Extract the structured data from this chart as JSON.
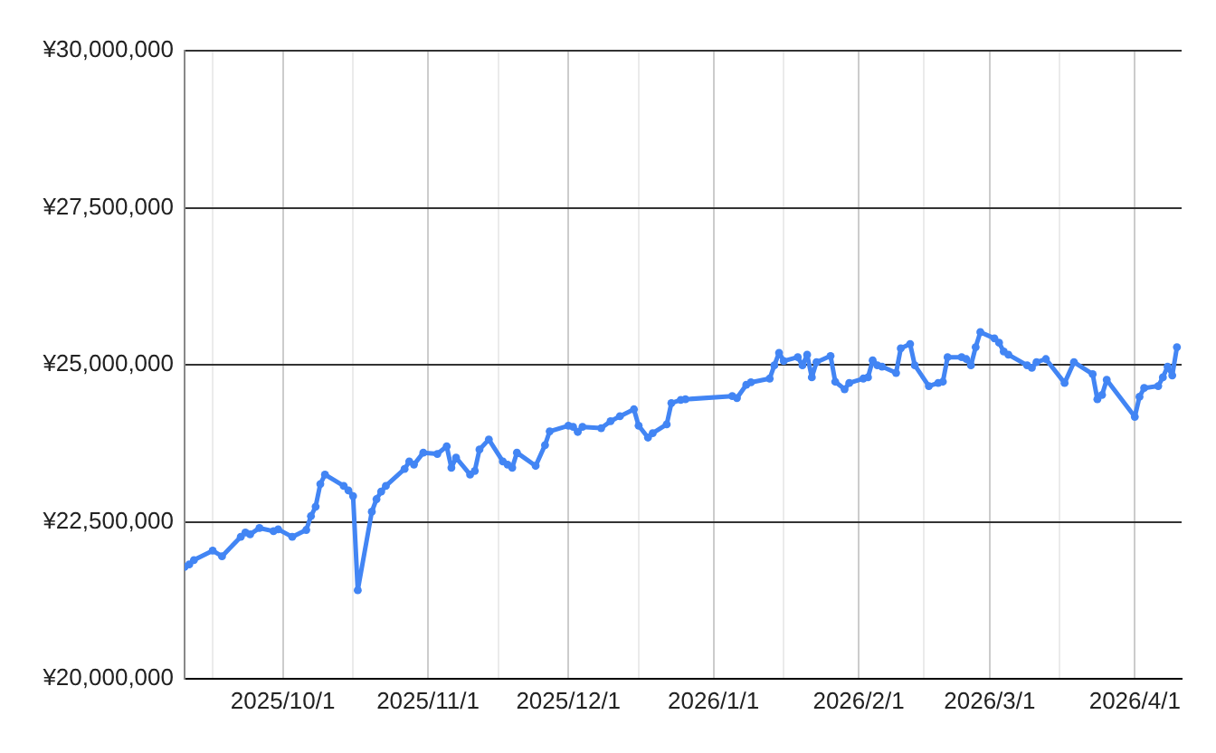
{
  "chart_data": {
    "type": "line",
    "x": [
      "2025-09-10",
      "2025-09-11",
      "2025-09-12",
      "2025-09-16",
      "2025-09-18",
      "2025-09-22",
      "2025-09-23",
      "2025-09-24",
      "2025-09-26",
      "2025-09-29",
      "2025-09-30",
      "2025-10-03",
      "2025-10-06",
      "2025-10-07",
      "2025-10-08",
      "2025-10-09",
      "2025-10-10",
      "2025-10-14",
      "2025-10-15",
      "2025-10-16",
      "2025-10-17",
      "2025-10-20",
      "2025-10-21",
      "2025-10-22",
      "2025-10-23",
      "2025-10-27",
      "2025-10-28",
      "2025-10-29",
      "2025-10-31",
      "2025-11-03",
      "2025-11-05",
      "2025-11-06",
      "2025-11-07",
      "2025-11-10",
      "2025-11-11",
      "2025-11-12",
      "2025-11-14",
      "2025-11-17",
      "2025-11-18",
      "2025-11-19",
      "2025-11-20",
      "2025-11-24",
      "2025-11-26",
      "2025-11-27",
      "2025-12-01",
      "2025-12-02",
      "2025-12-03",
      "2025-12-04",
      "2025-12-08",
      "2025-12-10",
      "2025-12-12",
      "2025-12-15",
      "2025-12-16",
      "2025-12-18",
      "2025-12-19",
      "2025-12-22",
      "2025-12-23",
      "2025-12-25",
      "2025-12-26",
      "2026-01-05",
      "2026-01-06",
      "2026-01-08",
      "2026-01-09",
      "2026-01-13",
      "2026-01-14",
      "2026-01-15",
      "2026-01-16",
      "2026-01-19",
      "2026-01-20",
      "2026-01-21",
      "2026-01-22",
      "2026-01-23",
      "2026-01-26",
      "2026-01-27",
      "2026-01-29",
      "2026-01-30",
      "2026-02-02",
      "2026-02-03",
      "2026-02-04",
      "2026-02-05",
      "2026-02-06",
      "2026-02-09",
      "2026-02-10",
      "2026-02-12",
      "2026-02-13",
      "2026-02-16",
      "2026-02-18",
      "2026-02-19",
      "2026-02-20",
      "2026-02-23",
      "2026-02-24",
      "2026-02-25",
      "2026-02-26",
      "2026-02-27",
      "2026-03-02",
      "2026-03-03",
      "2026-03-04",
      "2026-03-05",
      "2026-03-09",
      "2026-03-10",
      "2026-03-11",
      "2026-03-13",
      "2026-03-17",
      "2026-03-19",
      "2026-03-23",
      "2026-03-24",
      "2026-03-25",
      "2026-03-26",
      "2026-04-01",
      "2026-04-02",
      "2026-04-03",
      "2026-04-06",
      "2026-04-07",
      "2026-04-08",
      "2026-04-09",
      "2026-04-10"
    ],
    "series": [
      {
        "color": "#4285f4",
        "values": [
          21780000,
          21820000,
          21890000,
          22040000,
          21950000,
          22260000,
          22330000,
          22300000,
          22400000,
          22350000,
          22380000,
          22260000,
          22370000,
          22590000,
          22740000,
          23100000,
          23250000,
          23070000,
          23000000,
          22910000,
          21410000,
          22660000,
          22860000,
          22980000,
          23070000,
          23340000,
          23460000,
          23410000,
          23600000,
          23580000,
          23700000,
          23360000,
          23520000,
          23250000,
          23310000,
          23650000,
          23810000,
          23460000,
          23410000,
          23360000,
          23600000,
          23390000,
          23720000,
          23940000,
          24030000,
          24010000,
          23930000,
          24010000,
          23990000,
          24100000,
          24180000,
          24290000,
          24030000,
          23840000,
          23910000,
          24050000,
          24390000,
          24440000,
          24450000,
          24500000,
          24470000,
          24680000,
          24720000,
          24780000,
          24990000,
          25190000,
          25060000,
          25120000,
          24990000,
          25160000,
          24800000,
          25040000,
          25140000,
          24730000,
          24610000,
          24710000,
          24780000,
          24800000,
          25070000,
          24990000,
          24970000,
          24870000,
          25260000,
          25330000,
          24990000,
          24660000,
          24710000,
          24730000,
          25120000,
          25120000,
          25090000,
          24990000,
          25280000,
          25520000,
          25420000,
          25350000,
          25210000,
          25160000,
          24990000,
          24950000,
          25040000,
          25090000,
          24710000,
          25040000,
          24850000,
          24450000,
          24520000,
          24760000,
          24170000,
          24490000,
          24630000,
          24660000,
          24800000,
          24970000,
          24830000,
          25280000
        ]
      }
    ],
    "xlim": [
      "2025-09-10",
      "2026-04-11"
    ],
    "xticks": [
      {
        "value": "2025-09-16",
        "label": null
      },
      {
        "value": "2025-10-01",
        "label": "2025/10/1"
      },
      {
        "value": "2025-10-16",
        "label": null
      },
      {
        "value": "2025-11-01",
        "label": "2025/11/1"
      },
      {
        "value": "2025-11-16",
        "label": null
      },
      {
        "value": "2025-12-01",
        "label": "2025/12/1"
      },
      {
        "value": "2025-12-16",
        "label": null
      },
      {
        "value": "2026-01-01",
        "label": "2026/1/1"
      },
      {
        "value": "2026-01-16",
        "label": null
      },
      {
        "value": "2026-02-01",
        "label": "2026/2/1"
      },
      {
        "value": "2026-02-15",
        "label": null
      },
      {
        "value": "2026-03-01",
        "label": "2026/3/1"
      },
      {
        "value": "2026-03-16",
        "label": null
      },
      {
        "value": "2026-04-01",
        "label": "2026/4/1"
      }
    ],
    "ylim": [
      20000000,
      30000000
    ],
    "yticks": [
      {
        "value": 20000000,
        "label": "¥20,000,000"
      },
      {
        "value": 22500000,
        "label": "¥22,500,000"
      },
      {
        "value": 25000000,
        "label": "¥25,000,000"
      },
      {
        "value": 27500000,
        "label": "¥27,500,000"
      },
      {
        "value": 30000000,
        "label": "¥30,000,000"
      }
    ],
    "grid": true,
    "marker": "circle",
    "line_style": "solid"
  }
}
